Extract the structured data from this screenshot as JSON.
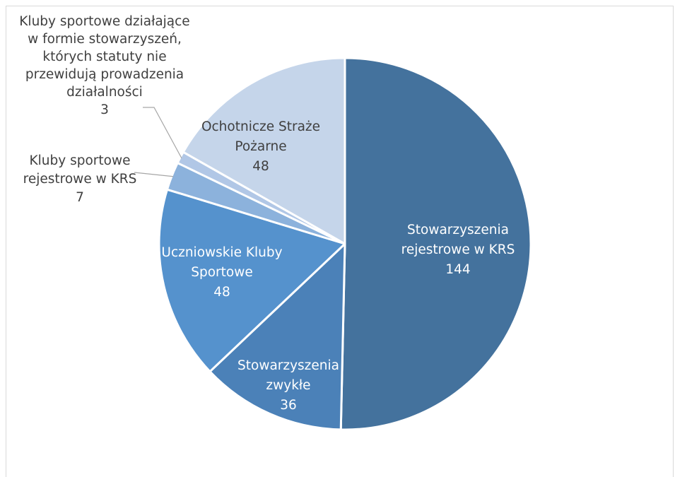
{
  "chart_data": {
    "type": "pie",
    "title": "",
    "categories": [
      "Stowarzyszenia rejestrowe w KRS",
      "Stowarzyszenia zwykłe",
      "Uczniowskie Kluby Sportowe",
      "Kluby sportowe rejestrowe w KRS",
      "Kluby sportowe działające w formie stowarzyszeń, których statuty nie przewidują prowadzenia działalności",
      "Ochotnicze Straże Pożarne"
    ],
    "values": [
      144,
      36,
      48,
      7,
      3,
      48
    ],
    "colors": [
      "#44729d",
      "#4b81b8",
      "#5592cd",
      "#8cb2dc",
      "#b1c7e6",
      "#c5d5ea"
    ],
    "label_lines": [
      [
        "Stowarzyszenia",
        "rejestrowe w KRS",
        "144"
      ],
      [
        "Stowarzyszenia",
        "zwykłe",
        "36"
      ],
      [
        "Uczniowskie Kluby",
        "Sportowe",
        "48"
      ],
      [
        "Kluby sportowe",
        "rejestrowe w KRS",
        "7"
      ],
      [
        "Kluby sportowe działające",
        "w formie stowarzyszeń,",
        "których statuty nie",
        "przewidują prowadzenia",
        "działalności",
        "3"
      ],
      [
        "Ochotnicze Straże",
        "Pożarne",
        "48"
      ]
    ],
    "legend": "none",
    "start_angle_deg": 0,
    "direction": "clockwise"
  }
}
